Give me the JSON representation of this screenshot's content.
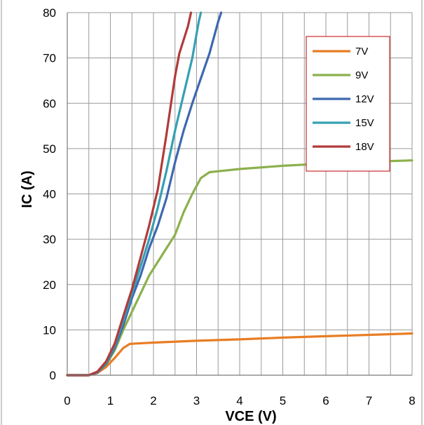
{
  "chart_data": {
    "type": "line",
    "title": "",
    "xlabel": "VCE  (V)",
    "ylabel": "IC  (A)",
    "xlim": [
      0,
      8
    ],
    "ylim": [
      0,
      80
    ],
    "x_ticks": [
      0,
      1,
      2,
      3,
      4,
      5,
      6,
      7,
      8
    ],
    "y_ticks": [
      0,
      10,
      20,
      30,
      40,
      50,
      60,
      70,
      80
    ],
    "grid": true,
    "legend_position": "top-right",
    "series": [
      {
        "name": "7V",
        "color": "#e87d24",
        "points": [
          [
            0,
            0
          ],
          [
            0.5,
            0
          ],
          [
            0.7,
            0.5
          ],
          [
            0.9,
            1.8
          ],
          [
            1.1,
            3.8
          ],
          [
            1.3,
            6.0
          ],
          [
            1.45,
            6.9
          ],
          [
            1.6,
            7.0
          ],
          [
            2,
            7.2
          ],
          [
            3,
            7.6
          ],
          [
            4,
            7.9
          ],
          [
            5,
            8.3
          ],
          [
            6,
            8.6
          ],
          [
            7,
            8.9
          ],
          [
            8,
            9.2
          ]
        ]
      },
      {
        "name": "9V",
        "color": "#8cb04c",
        "points": [
          [
            0,
            0
          ],
          [
            0.5,
            0
          ],
          [
            0.7,
            0.6
          ],
          [
            0.9,
            2.3
          ],
          [
            1.1,
            5.5
          ],
          [
            1.3,
            10
          ],
          [
            1.5,
            14
          ],
          [
            1.7,
            18
          ],
          [
            1.9,
            22
          ],
          [
            2.1,
            25
          ],
          [
            2.3,
            28
          ],
          [
            2.5,
            31
          ],
          [
            2.7,
            36
          ],
          [
            2.9,
            40
          ],
          [
            3.1,
            43.5
          ],
          [
            3.3,
            44.8
          ],
          [
            3.5,
            45.0
          ],
          [
            4,
            45.5
          ],
          [
            5,
            46.2
          ],
          [
            6,
            46.7
          ],
          [
            7,
            47.1
          ],
          [
            8,
            47.4
          ]
        ]
      },
      {
        "name": "12V",
        "color": "#3d68b0",
        "points": [
          [
            0,
            0
          ],
          [
            0.5,
            0
          ],
          [
            0.7,
            0.6
          ],
          [
            0.9,
            2.5
          ],
          [
            1.1,
            6
          ],
          [
            1.3,
            11
          ],
          [
            1.5,
            17
          ],
          [
            1.7,
            22
          ],
          [
            1.9,
            28
          ],
          [
            2.1,
            33
          ],
          [
            2.3,
            39
          ],
          [
            2.5,
            47
          ],
          [
            2.7,
            54
          ],
          [
            2.9,
            60
          ],
          [
            3.1,
            65.5
          ],
          [
            3.3,
            71
          ],
          [
            3.5,
            78
          ],
          [
            3.57,
            80
          ]
        ]
      },
      {
        "name": "15V",
        "color": "#35a0b3",
        "points": [
          [
            0,
            0
          ],
          [
            0.5,
            0
          ],
          [
            0.7,
            0.7
          ],
          [
            0.9,
            2.8
          ],
          [
            1.1,
            6.5
          ],
          [
            1.3,
            12
          ],
          [
            1.5,
            18
          ],
          [
            1.7,
            24
          ],
          [
            1.9,
            30
          ],
          [
            2.1,
            37
          ],
          [
            2.3,
            45
          ],
          [
            2.5,
            54
          ],
          [
            2.7,
            62
          ],
          [
            2.9,
            70
          ],
          [
            3.05,
            78
          ],
          [
            3.1,
            80
          ]
        ]
      },
      {
        "name": "18V",
        "color": "#b23a3a",
        "points": [
          [
            0,
            0
          ],
          [
            0.5,
            0
          ],
          [
            0.7,
            0.8
          ],
          [
            0.9,
            3
          ],
          [
            1.1,
            7
          ],
          [
            1.3,
            13
          ],
          [
            1.5,
            19
          ],
          [
            1.7,
            26
          ],
          [
            1.9,
            33
          ],
          [
            2.1,
            41
          ],
          [
            2.3,
            53
          ],
          [
            2.5,
            66
          ],
          [
            2.6,
            71
          ],
          [
            2.8,
            77
          ],
          [
            2.87,
            80
          ]
        ]
      }
    ]
  }
}
